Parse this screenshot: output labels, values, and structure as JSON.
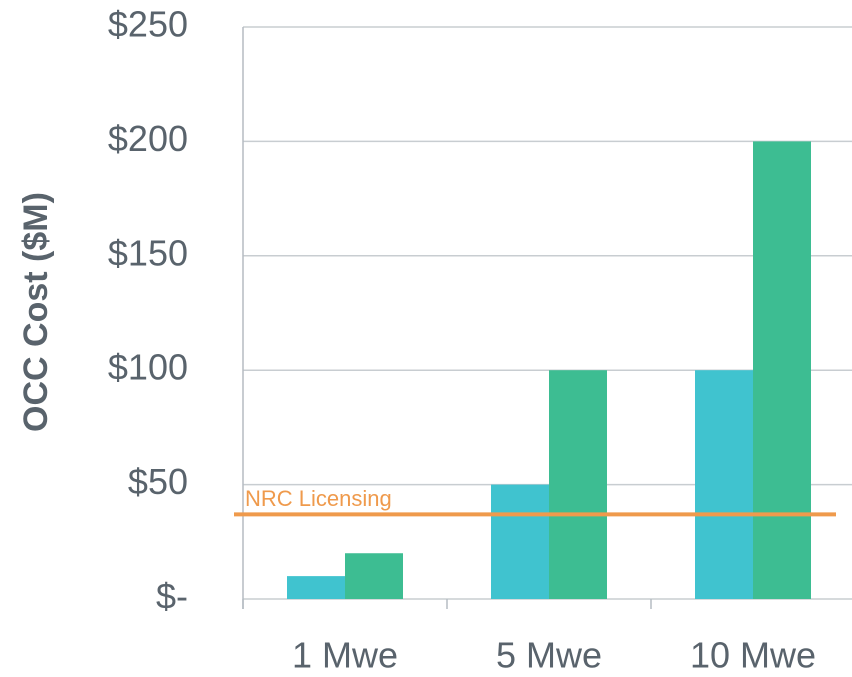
{
  "chart_data": {
    "type": "bar",
    "y_label": "OCC Cost ($M)",
    "categories": [
      "1 Mwe",
      "5 Mwe",
      "10 Mwe"
    ],
    "series": [
      {
        "color": "#40c3cf",
        "values": [
          10,
          50,
          100
        ]
      },
      {
        "color": "#3dbd92",
        "values": [
          20,
          100,
          200
        ]
      }
    ],
    "ylim": [
      0,
      250
    ],
    "yticks": [
      {
        "value": 0,
        "label": "$-"
      },
      {
        "value": 50,
        "label": "$50"
      },
      {
        "value": 100,
        "label": "$100"
      },
      {
        "value": 150,
        "label": "$150"
      },
      {
        "value": 200,
        "label": "$200"
      },
      {
        "value": 250,
        "label": "$250"
      }
    ],
    "grid": true,
    "reference_lines": [
      {
        "value": 37,
        "label": "NRC Licensing",
        "color": "#ef9a4c"
      }
    ]
  }
}
